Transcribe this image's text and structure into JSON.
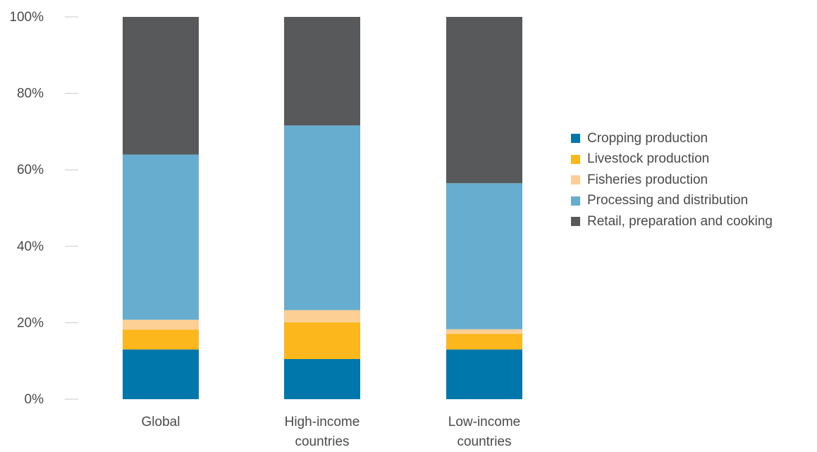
{
  "chart_data": {
    "type": "bar",
    "stacked": true,
    "categories": [
      [
        "Global"
      ],
      [
        "High-income",
        "countries"
      ],
      [
        "Low-income",
        "countries"
      ]
    ],
    "series": [
      {
        "name": "Cropping production",
        "color": "#0077aa",
        "values": [
          13,
          10.5,
          13
        ]
      },
      {
        "name": "Livestock production",
        "color": "#fbb71b",
        "values": [
          5.2,
          9.6,
          4.1
        ]
      },
      {
        "name": "Fisheries production",
        "color": "#fccf94",
        "values": [
          2.6,
          3.2,
          1.2
        ]
      },
      {
        "name": "Processing and distribution",
        "color": "#66adcf",
        "values": [
          43.2,
          48.3,
          38.2
        ]
      },
      {
        "name": "Retail, preparation and cooking",
        "color": "#58595b",
        "values": [
          36,
          28.4,
          43.5
        ]
      }
    ],
    "yticks": [
      "0%",
      "20%",
      "40%",
      "60%",
      "80%",
      "100%"
    ],
    "ylim": [
      0,
      100
    ],
    "legend_position": "right",
    "grid": false
  }
}
